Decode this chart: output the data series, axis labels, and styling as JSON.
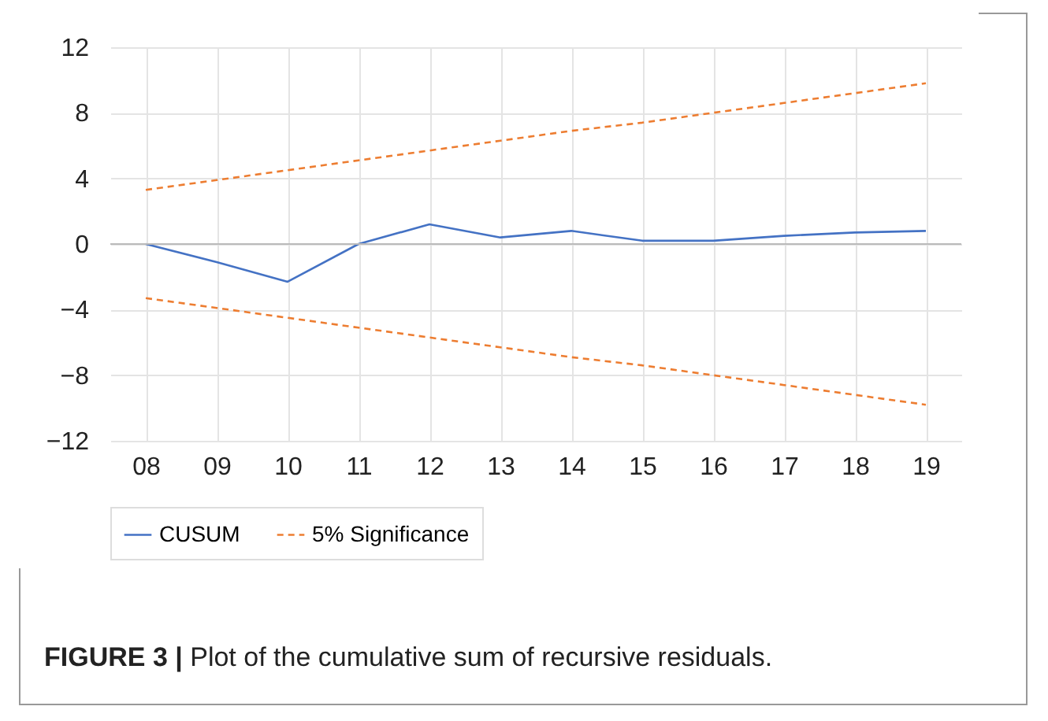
{
  "chart_data": {
    "type": "line",
    "categories": [
      "08",
      "09",
      "10",
      "11",
      "12",
      "13",
      "14",
      "15",
      "16",
      "17",
      "18",
      "19"
    ],
    "series": [
      {
        "name": "CUSUM",
        "color": "#4472c4",
        "line_style": "solid",
        "values": [
          0,
          -1.1,
          -2.3,
          0,
          1.2,
          0.4,
          0.8,
          0.2,
          0.2,
          0.5,
          0.7,
          0.8
        ]
      },
      {
        "name": "5% Significance",
        "color": "#ed7d31",
        "line_style": "dashed",
        "values": [
          3.3,
          3.9,
          4.5,
          5.1,
          5.7,
          6.3,
          6.9,
          7.4,
          8.0,
          8.6,
          9.2,
          9.8
        ]
      },
      {
        "color": "#ed7d31",
        "line_style": "dashed",
        "values": [
          -3.3,
          -3.9,
          -4.5,
          -5.1,
          -5.7,
          -6.3,
          -6.9,
          -7.4,
          -8.0,
          -8.6,
          -9.2,
          -9.8
        ]
      }
    ],
    "ylim": [
      -12,
      12
    ],
    "yticks": [
      -12,
      -8,
      -4,
      0,
      4,
      8,
      12
    ],
    "grid": true,
    "legend": "bottom",
    "annotations": [
      "FIGURE 3 | Plot of the cumulative sum of recursive residuals."
    ]
  }
}
